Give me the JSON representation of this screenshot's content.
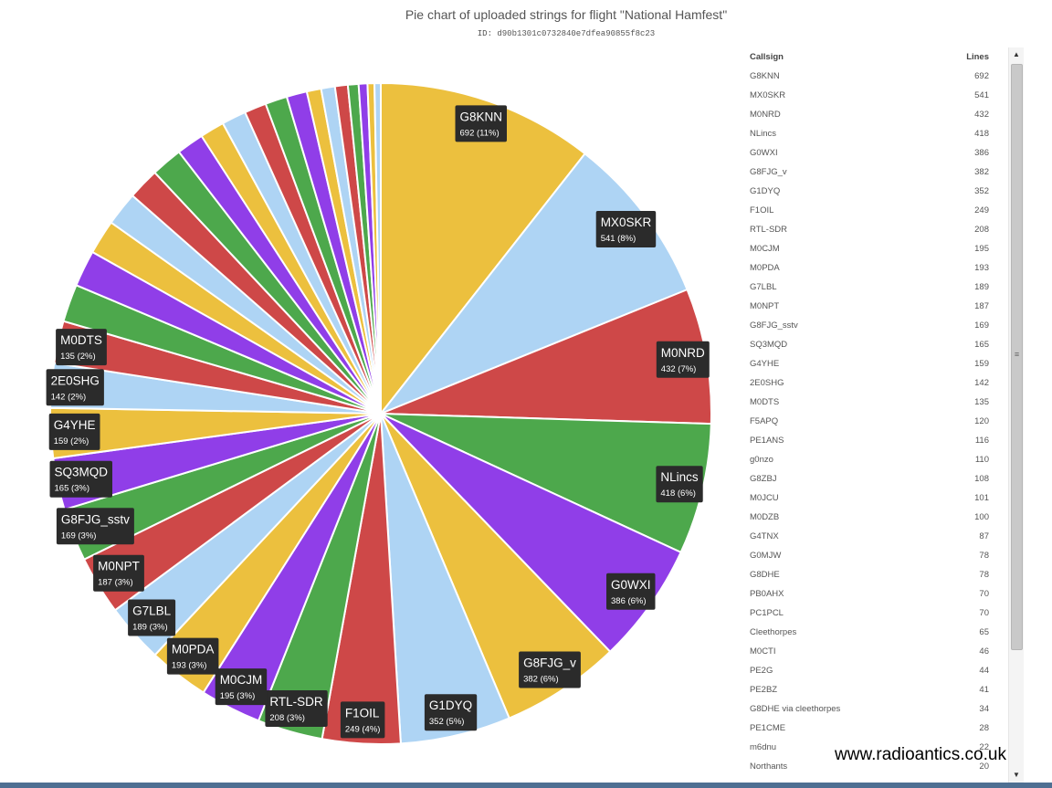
{
  "header": {
    "title": "Pie chart of uploaded strings for flight \"National Hamfest\"",
    "subtitle": "ID: d90b1301c0732840e7dfea90855f8c23"
  },
  "chart_data": {
    "type": "pie",
    "title": "Pie chart of uploaded strings for flight \"National Hamfest\"",
    "slices": [
      {
        "name": "G8KNN",
        "value": 692
      },
      {
        "name": "MX0SKR",
        "value": 541
      },
      {
        "name": "M0NRD",
        "value": 432
      },
      {
        "name": "NLincs",
        "value": 418
      },
      {
        "name": "G0WXI",
        "value": 386
      },
      {
        "name": "G8FJG_v",
        "value": 382
      },
      {
        "name": "G1DYQ",
        "value": 352
      },
      {
        "name": "F1OIL",
        "value": 249
      },
      {
        "name": "RTL-SDR",
        "value": 208
      },
      {
        "name": "M0CJM",
        "value": 195
      },
      {
        "name": "M0PDA",
        "value": 193
      },
      {
        "name": "G7LBL",
        "value": 189
      },
      {
        "name": "M0NPT",
        "value": 187
      },
      {
        "name": "G8FJG_sstv",
        "value": 169
      },
      {
        "name": "SQ3MQD",
        "value": 165
      },
      {
        "name": "G4YHE",
        "value": 159
      },
      {
        "name": "2E0SHG",
        "value": 142
      },
      {
        "name": "M0DTS",
        "value": 135
      },
      {
        "name": "F5APQ",
        "value": 120
      },
      {
        "name": "PE1ANS",
        "value": 116
      },
      {
        "name": "g0nzo",
        "value": 110
      },
      {
        "name": "G8ZBJ",
        "value": 108
      },
      {
        "name": "M0JCU",
        "value": 101
      },
      {
        "name": "M0DZB",
        "value": 100
      },
      {
        "name": "G4TNX",
        "value": 87
      },
      {
        "name": "G0MJW",
        "value": 78
      },
      {
        "name": "G8DHE",
        "value": 78
      },
      {
        "name": "PB0AHX",
        "value": 70
      },
      {
        "name": "PC1PCL",
        "value": 70
      },
      {
        "name": "Cleethorpes",
        "value": 65
      },
      {
        "name": "M0CTI",
        "value": 46
      },
      {
        "name": "PE2G",
        "value": 44
      },
      {
        "name": "PE2BZ",
        "value": 41
      },
      {
        "name": "G8DHE via cleethorpes",
        "value": 34
      },
      {
        "name": "PE1CME",
        "value": 28
      },
      {
        "name": "m6dnu",
        "value": 22
      },
      {
        "name": "Northants",
        "value": 20
      }
    ],
    "labels": [
      {
        "name": "G8KNN",
        "value_text": "692 (11%)"
      },
      {
        "name": "MX0SKR",
        "value_text": "541 (8%)"
      },
      {
        "name": "M0NRD",
        "value_text": "432 (7%)"
      },
      {
        "name": "NLincs",
        "value_text": "418 (6%)"
      },
      {
        "name": "G0WXI",
        "value_text": "386 (6%)"
      },
      {
        "name": "G8FJG_v",
        "value_text": "382 (6%)"
      },
      {
        "name": "G1DYQ",
        "value_text": "352 (5%)"
      },
      {
        "name": "F1OIL",
        "value_text": "249 (4%)"
      },
      {
        "name": "RTL-SDR",
        "value_text": "208 (3%)"
      },
      {
        "name": "M0CJM",
        "value_text": "195 (3%)"
      },
      {
        "name": "M0PDA",
        "value_text": "193 (3%)"
      },
      {
        "name": "G7LBL",
        "value_text": "189 (3%)"
      },
      {
        "name": "M0NPT",
        "value_text": "187 (3%)"
      },
      {
        "name": "G8FJG_sstv",
        "value_text": "169 (3%)"
      },
      {
        "name": "SQ3MQD",
        "value_text": "165 (3%)"
      },
      {
        "name": "G4YHE",
        "value_text": "159 (2%)"
      },
      {
        "name": "2E0SHG",
        "value_text": "142 (2%)"
      },
      {
        "name": "M0DTS",
        "value_text": "135 (2%)"
      }
    ],
    "colors": [
      "#ecc03e",
      "#aed4f4",
      "#ce4848",
      "#4da84c",
      "#903ee8"
    ]
  },
  "table": {
    "headers": [
      "Callsign",
      "Lines"
    ]
  },
  "watermark": "www.radioantics.co.uk",
  "scrollbar": {
    "up": "▲",
    "down": "▼",
    "grip": "≡"
  }
}
